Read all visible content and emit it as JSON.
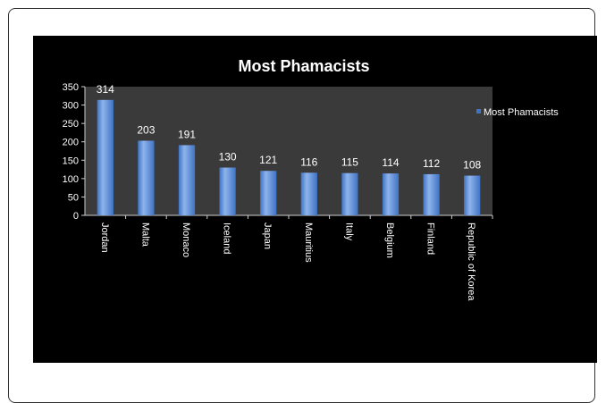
{
  "chart_data": {
    "type": "bar",
    "title": "Most Phamacists",
    "categories": [
      "Jordan",
      "Malta",
      "Monaco",
      "Iceland",
      "Japan",
      "Mauritius",
      "Italy",
      "Belgium",
      "Finland",
      "Republic of Korea"
    ],
    "series": [
      {
        "name": "Most Phamacists",
        "values": [
          314,
          203,
          191,
          130,
          121,
          116,
          115,
          114,
          112,
          108
        ]
      }
    ],
    "y_ticks": [
      0,
      50,
      100,
      150,
      200,
      250,
      300,
      350
    ],
    "ylim": [
      0,
      350
    ],
    "xlabel": "",
    "ylabel": "",
    "legend_position": "right",
    "grid": false,
    "data_labels": true,
    "colors": {
      "background": "#000000",
      "plot_area": "#3a3a3a",
      "bar": "#3f73c4",
      "bar_highlight": "#8fb4ec",
      "text": "#ffffff"
    }
  }
}
